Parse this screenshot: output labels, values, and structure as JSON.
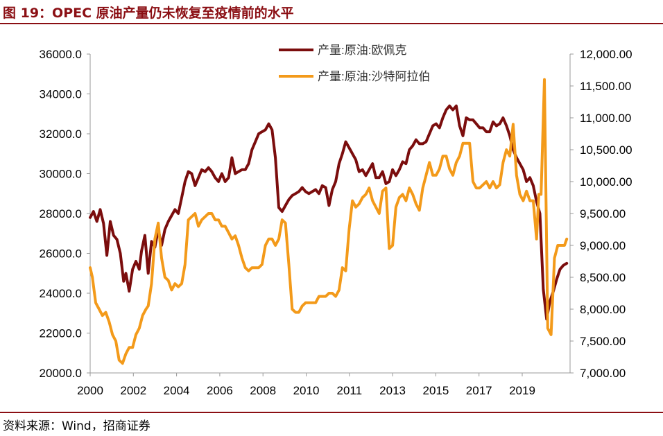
{
  "header": {
    "title": "图 19：OPEC 原油产量仍未恢复至疫情前的水平"
  },
  "footer": {
    "source": "资料来源：Wind，招商证券"
  },
  "chart_data": {
    "type": "line",
    "x_ticks": [
      "2000",
      "2002",
      "2004",
      "2006",
      "2008",
      "2010",
      "2011",
      "2013",
      "2015",
      "2017",
      "2019"
    ],
    "x_range": [
      2000,
      2021.5
    ],
    "left_axis": {
      "range": [
        20000,
        36000
      ],
      "ticks": [
        "20000.0",
        "22000.0",
        "24000.0",
        "26000.0",
        "28000.0",
        "30000.0",
        "32000.0",
        "34000.0",
        "36000.0"
      ]
    },
    "right_axis": {
      "range": [
        7000,
        12000
      ],
      "ticks": [
        "7,000.00",
        "7,500.00",
        "8,000.00",
        "8,500.00",
        "9,000.00",
        "9,500.00",
        "10,000.00",
        "10,500.00",
        "11,000.00",
        "11,500.00",
        "12,000.00"
      ]
    },
    "legend_position": "top-center",
    "series": [
      {
        "name": "产量:原油:欧佩克",
        "axis": "left",
        "color": "#7b0d0d",
        "x": [
          2000.0,
          2000.15,
          2000.3,
          2000.45,
          2000.6,
          2000.75,
          2000.9,
          2001.05,
          2001.2,
          2001.35,
          2001.5,
          2001.6,
          2001.75,
          2001.9,
          2002.05,
          2002.2,
          2002.3,
          2002.45,
          2002.6,
          2002.75,
          2002.9,
          2003.05,
          2003.2,
          2003.35,
          2003.5,
          2003.65,
          2003.8,
          2003.95,
          2004.1,
          2004.25,
          2004.4,
          2004.55,
          2004.7,
          2004.85,
          2005.0,
          2005.15,
          2005.3,
          2005.45,
          2005.6,
          2005.75,
          2005.9,
          2006.05,
          2006.2,
          2006.35,
          2006.5,
          2006.65,
          2006.8,
          2006.95,
          2007.1,
          2007.25,
          2007.4,
          2007.55,
          2007.7,
          2007.85,
          2008.0,
          2008.15,
          2008.3,
          2008.45,
          2008.6,
          2008.75,
          2008.9,
          2009.05,
          2009.2,
          2009.35,
          2009.5,
          2009.65,
          2009.8,
          2009.95,
          2010.1,
          2010.25,
          2010.4,
          2010.55,
          2010.7,
          2010.85,
          2011.0,
          2011.15,
          2011.3,
          2011.45,
          2011.6,
          2011.75,
          2011.9,
          2012.05,
          2012.2,
          2012.35,
          2012.5,
          2012.65,
          2012.8,
          2012.95,
          2013.1,
          2013.25,
          2013.4,
          2013.55,
          2013.7,
          2013.85,
          2014.0,
          2014.15,
          2014.3,
          2014.45,
          2014.6,
          2014.75,
          2014.9,
          2015.05,
          2015.2,
          2015.35,
          2015.5,
          2015.65,
          2015.8,
          2015.95,
          2016.1,
          2016.25,
          2016.4,
          2016.55,
          2016.7,
          2016.85,
          2017.0,
          2017.15,
          2017.3,
          2017.45,
          2017.6,
          2017.75,
          2017.9,
          2018.05,
          2018.2,
          2018.35,
          2018.5,
          2018.65,
          2018.8,
          2018.95,
          2019.1,
          2019.25,
          2019.4,
          2019.55,
          2019.7,
          2019.85,
          2020.0,
          2020.15,
          2020.3,
          2020.45,
          2020.6,
          2020.75,
          2020.9,
          2021.05,
          2021.2,
          2021.35
        ],
        "values": [
          27800,
          28100,
          27600,
          28200,
          27500,
          25900,
          27600,
          26900,
          26700,
          26000,
          24600,
          25000,
          24100,
          25200,
          25600,
          25200,
          26100,
          26900,
          25000,
          26600,
          26300,
          27200,
          26400,
          27200,
          27600,
          27900,
          28200,
          28000,
          28800,
          29600,
          30100,
          30000,
          29400,
          29800,
          30200,
          30100,
          30300,
          30100,
          29800,
          29600,
          30000,
          29600,
          29800,
          30800,
          30000,
          30100,
          30200,
          30200,
          30500,
          31200,
          31600,
          32000,
          32100,
          32200,
          32500,
          32200,
          30800,
          28300,
          28100,
          28400,
          28700,
          28900,
          29000,
          29100,
          29300,
          29100,
          29000,
          29100,
          29200,
          29000,
          29400,
          29300,
          28400,
          29200,
          29600,
          30500,
          31000,
          31600,
          31300,
          31000,
          30700,
          30100,
          30200,
          29900,
          30200,
          30500,
          29800,
          29800,
          30100,
          29500,
          29600,
          30200,
          29900,
          30200,
          30600,
          30500,
          31200,
          31400,
          31700,
          31500,
          31500,
          31600,
          32000,
          32400,
          32500,
          32300,
          32800,
          33200,
          33400,
          33200,
          33400,
          32400,
          31900,
          32800,
          32700,
          32700,
          32500,
          32300,
          32300,
          32100,
          32100,
          32600,
          32400,
          32500,
          32800,
          32400,
          31900,
          31200,
          30800,
          30500,
          30200,
          29600,
          29800,
          29400,
          28600,
          28000,
          24200,
          22700,
          23600,
          24100,
          24700,
          25200,
          25400,
          25500
        ],
        "note": "monthly-ish estimates read from chart"
      },
      {
        "name": "产量:原油:沙特阿拉伯",
        "axis": "right",
        "color": "#f39a1a",
        "x": [
          2000.0,
          2000.1,
          2000.25,
          2000.4,
          2000.55,
          2000.7,
          2000.85,
          2001.0,
          2001.15,
          2001.3,
          2001.45,
          2001.6,
          2001.75,
          2001.9,
          2002.05,
          2002.2,
          2002.35,
          2002.5,
          2002.6,
          2002.75,
          2002.9,
          2003.05,
          2003.2,
          2003.35,
          2003.5,
          2003.65,
          2003.8,
          2003.95,
          2004.1,
          2004.25,
          2004.4,
          2004.55,
          2004.7,
          2004.85,
          2005.0,
          2005.15,
          2005.3,
          2005.45,
          2005.6,
          2005.75,
          2005.9,
          2006.05,
          2006.2,
          2006.35,
          2006.5,
          2006.65,
          2006.8,
          2006.95,
          2007.1,
          2007.25,
          2007.4,
          2007.55,
          2007.7,
          2007.85,
          2008.0,
          2008.15,
          2008.3,
          2008.45,
          2008.6,
          2008.75,
          2008.9,
          2009.05,
          2009.2,
          2009.35,
          2009.5,
          2009.65,
          2009.8,
          2009.95,
          2010.1,
          2010.25,
          2010.4,
          2010.55,
          2010.7,
          2010.85,
          2011.0,
          2011.15,
          2011.3,
          2011.45,
          2011.6,
          2011.75,
          2011.9,
          2012.05,
          2012.2,
          2012.35,
          2012.5,
          2012.65,
          2012.8,
          2012.95,
          2013.1,
          2013.25,
          2013.4,
          2013.55,
          2013.7,
          2013.85,
          2014.0,
          2014.15,
          2014.3,
          2014.45,
          2014.6,
          2014.75,
          2014.9,
          2015.05,
          2015.2,
          2015.35,
          2015.5,
          2015.65,
          2015.8,
          2015.95,
          2016.1,
          2016.25,
          2016.4,
          2016.55,
          2016.7,
          2016.85,
          2017.0,
          2017.15,
          2017.3,
          2017.45,
          2017.6,
          2017.75,
          2017.9,
          2018.05,
          2018.2,
          2018.35,
          2018.5,
          2018.65,
          2018.8,
          2018.95,
          2019.1,
          2019.25,
          2019.4,
          2019.55,
          2019.7,
          2019.85,
          2020.0,
          2020.1,
          2020.2,
          2020.35,
          2020.5,
          2020.65,
          2020.8,
          2020.95,
          2021.1,
          2021.25,
          2021.35
        ],
        "values": [
          8650,
          8500,
          8100,
          8000,
          7900,
          7950,
          7800,
          7600,
          7500,
          7200,
          7150,
          7300,
          7400,
          7400,
          7600,
          7700,
          7900,
          8000,
          8050,
          8400,
          9100,
          9350,
          8800,
          8500,
          8450,
          8300,
          8400,
          8350,
          8400,
          8700,
          9400,
          9450,
          9500,
          9300,
          9400,
          9450,
          9500,
          9500,
          9400,
          9400,
          9300,
          9300,
          9200,
          9100,
          9150,
          9000,
          8800,
          8650,
          8600,
          8650,
          8650,
          8650,
          8700,
          9000,
          9100,
          9100,
          9000,
          9100,
          9400,
          9350,
          8700,
          8000,
          7950,
          7950,
          8050,
          8100,
          8100,
          8100,
          8100,
          8200,
          8200,
          8200,
          8250,
          8250,
          8200,
          8300,
          8650,
          8600,
          9250,
          9700,
          9600,
          9650,
          9750,
          9800,
          9900,
          9700,
          9600,
          9500,
          9850,
          9900,
          8950,
          9000,
          9600,
          9750,
          9800,
          9700,
          9900,
          9800,
          9650,
          9550,
          9900,
          10100,
          10300,
          10100,
          10100,
          10200,
          10400,
          10400,
          10200,
          10100,
          10300,
          10400,
          10600,
          10600,
          10600,
          10000,
          9900,
          9900,
          9950,
          10000,
          9900,
          10000,
          9900,
          9950,
          10300,
          10500,
          10400,
          10900,
          10100,
          9800,
          9700,
          9850,
          9700,
          9700,
          9100,
          9800,
          9800,
          11600,
          7700,
          7600,
          8800,
          9000,
          9000,
          9000,
          9100
        ]
      }
    ]
  }
}
